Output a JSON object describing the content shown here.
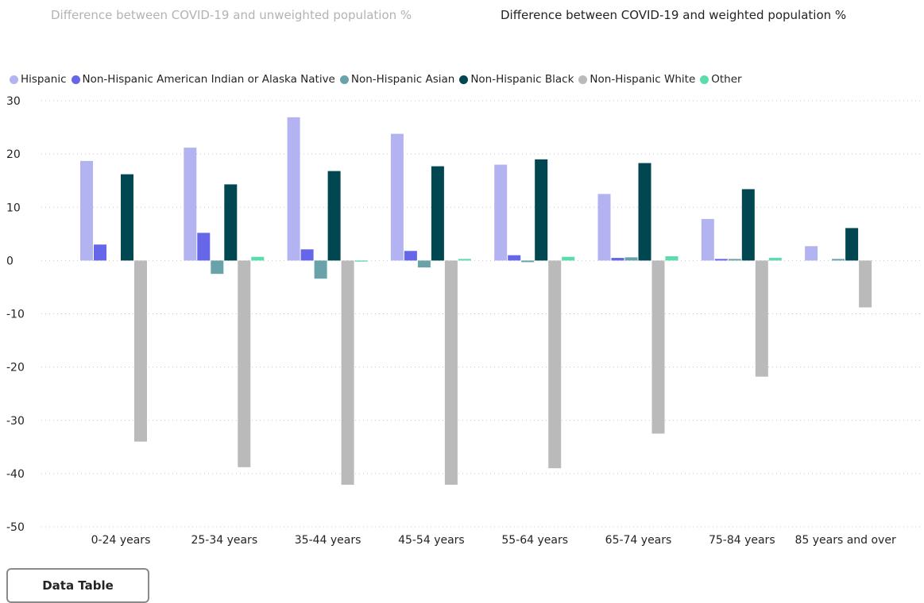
{
  "tabs": {
    "unweighted": "Difference between COVID-19 and unweighted population %",
    "weighted": "Difference between COVID-19 and weighted population %"
  },
  "data_table_button": "Data Table",
  "chart_data": {
    "type": "bar",
    "title": "",
    "xlabel": "",
    "ylabel": "",
    "ylim": [
      -50,
      30
    ],
    "yticks": [
      30,
      20,
      10,
      0,
      -10,
      -20,
      -30,
      -40,
      -50
    ],
    "grid": "horizontal dotted",
    "legend_position": "top-left",
    "categories": [
      "0-24 years",
      "25-34 years",
      "35-44 years",
      "45-54 years",
      "55-64 years",
      "65-74 years",
      "75-84 years",
      "85 years and over"
    ],
    "series": [
      {
        "name": "Hispanic",
        "color": "#b3b3f2",
        "values": [
          18.7,
          21.2,
          26.9,
          23.8,
          18.0,
          12.5,
          7.8,
          2.7
        ]
      },
      {
        "name": "Non-Hispanic American Indian or Alaska Native",
        "color": "#6666e8",
        "values": [
          3.0,
          5.2,
          2.1,
          1.8,
          1.0,
          0.5,
          0.3,
          0.0
        ]
      },
      {
        "name": "Non-Hispanic Asian",
        "color": "#6aa2aa",
        "values": [
          0.0,
          -2.5,
          -3.4,
          -1.3,
          -0.3,
          0.6,
          0.3,
          0.3
        ]
      },
      {
        "name": "Non-Hispanic Black",
        "color": "#004751",
        "values": [
          16.2,
          14.3,
          16.8,
          17.7,
          19.0,
          18.3,
          13.4,
          6.1
        ]
      },
      {
        "name": "Non-Hispanic White",
        "color": "#bababa",
        "values": [
          -34.0,
          -38.8,
          -42.1,
          -42.1,
          -39.0,
          -32.5,
          -21.8,
          -8.8
        ]
      },
      {
        "name": "Other",
        "color": "#5bdcab",
        "values": [
          0.0,
          0.7,
          -0.2,
          0.3,
          0.7,
          0.8,
          0.5,
          0.0
        ]
      }
    ]
  }
}
